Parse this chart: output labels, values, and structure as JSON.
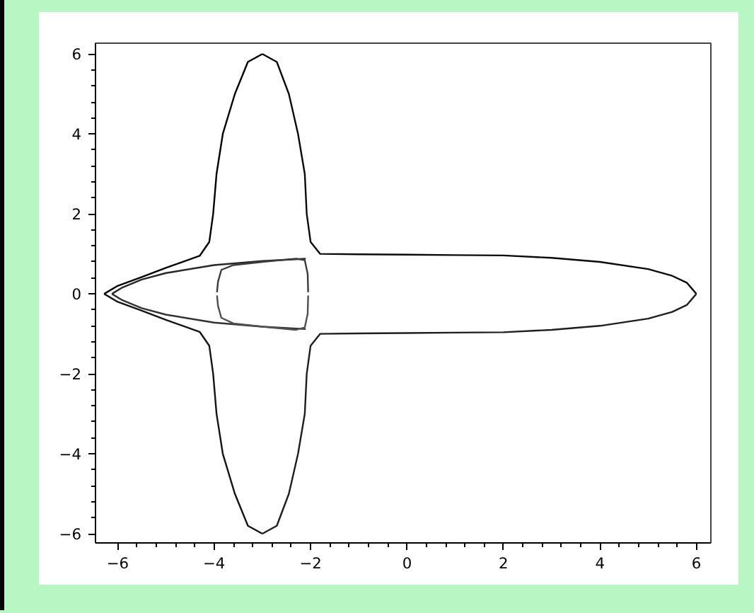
{
  "chart_data": {
    "type": "line",
    "xlim": [
      -6.46,
      6.3
    ],
    "ylim": [
      -6.23,
      6.27
    ],
    "xticks": [
      -6,
      {
        "value": -5.6,
        "label": null
      },
      {
        "value": -5.2,
        "label": null
      },
      {
        "value": -4.8,
        "label": null
      },
      {
        "value": -4.4,
        "label": null
      },
      -4,
      {
        "value": -3.6,
        "label": null
      },
      {
        "value": -3.2,
        "label": null
      },
      {
        "value": -2.8,
        "label": null
      },
      {
        "value": -2.4,
        "label": null
      },
      -2,
      {
        "value": -1.6,
        "label": null
      },
      {
        "value": -1.2,
        "label": null
      },
      {
        "value": -0.8,
        "label": null
      },
      {
        "value": -0.4,
        "label": null
      },
      0,
      {
        "value": 0.4,
        "label": null
      },
      {
        "value": 0.8,
        "label": null
      },
      {
        "value": 1.2,
        "label": null
      },
      {
        "value": 1.6,
        "label": null
      },
      2,
      {
        "value": 2.4,
        "label": null
      },
      {
        "value": 2.8,
        "label": null
      },
      {
        "value": 3.2,
        "label": null
      },
      {
        "value": 3.6,
        "label": null
      },
      4,
      {
        "value": 4.4,
        "label": null
      },
      {
        "value": 4.8,
        "label": null
      },
      {
        "value": 5.2,
        "label": null
      },
      {
        "value": 5.6,
        "label": null
      },
      6
    ],
    "yticks": [
      -6,
      {
        "value": -5.6,
        "label": null
      },
      {
        "value": -5.2,
        "label": null
      },
      {
        "value": -4.8,
        "label": null
      },
      {
        "value": -4.4,
        "label": null
      },
      -4,
      {
        "value": -3.6,
        "label": null
      },
      {
        "value": -3.2,
        "label": null
      },
      {
        "value": -2.8,
        "label": null
      },
      {
        "value": -2.4,
        "label": null
      },
      -2,
      {
        "value": -1.6,
        "label": null
      },
      {
        "value": -1.2,
        "label": null
      },
      {
        "value": -0.8,
        "label": null
      },
      {
        "value": -0.4,
        "label": null
      },
      0,
      {
        "value": 0.4,
        "label": null
      },
      {
        "value": 0.8,
        "label": null
      },
      {
        "value": 1.2,
        "label": null
      },
      {
        "value": 1.6,
        "label": null
      },
      2,
      {
        "value": 2.4,
        "label": null
      },
      {
        "value": 2.8,
        "label": null
      },
      {
        "value": 3.2,
        "label": null
      },
      {
        "value": 3.6,
        "label": null
      },
      4,
      {
        "value": 4.4,
        "label": null
      },
      {
        "value": 4.8,
        "label": null
      },
      {
        "value": 5.2,
        "label": null
      },
      {
        "value": 5.6,
        "label": null
      },
      6
    ],
    "grid": false,
    "marker": "none",
    "line_style": "solid",
    "series": [
      {
        "color": "#000000",
        "x": [
          -6.28,
          -6,
          -5.5,
          -5,
          -4.3,
          -4.1,
          -4.02,
          -3.95,
          -3.82,
          -3.57,
          -3.3,
          -3
        ],
        "values": [
          0,
          0.2,
          0.42,
          0.65,
          0.95,
          1.3,
          2,
          3,
          4,
          5,
          5.8,
          6
        ]
      },
      {
        "color": "#0a0a0a",
        "x": [
          -3,
          -2.7,
          -2.45,
          -2.26,
          -2.12,
          -2.08,
          -2.0,
          -1.8,
          -1,
          0,
          1,
          2,
          3,
          4,
          5,
          5.5,
          5.8,
          6
        ],
        "values": [
          6,
          5.8,
          5,
          4,
          3,
          2,
          1.3,
          1.0,
          0.99,
          0.98,
          0.97,
          0.96,
          0.9,
          0.8,
          0.62,
          0.45,
          0.28,
          0
        ]
      },
      {
        "color": "#141414",
        "x": [
          -6.28,
          -6,
          -5.5,
          -5,
          -4.3,
          -4.1,
          -4.02,
          -3.95,
          -3.82,
          -3.57,
          -3.3,
          -3
        ],
        "values": [
          0,
          -0.2,
          -0.42,
          -0.65,
          -0.95,
          -1.3,
          -2,
          -3,
          -4,
          -5,
          -5.8,
          -6
        ]
      },
      {
        "color": "#1e1e1e",
        "x": [
          -3,
          -2.7,
          -2.45,
          -2.26,
          -2.12,
          -2.08,
          -2.0,
          -1.8,
          -1,
          0,
          1,
          2,
          3,
          4,
          5,
          5.5,
          5.8,
          6
        ],
        "values": [
          -6,
          -5.8,
          -5,
          -4,
          -3,
          -2,
          -1.3,
          -1.0,
          -0.99,
          -0.98,
          -0.97,
          -0.96,
          -0.9,
          -0.8,
          -0.62,
          -0.45,
          -0.28,
          0
        ]
      },
      {
        "color": "#282828",
        "x": [
          -6.12,
          -5.9,
          -5.5,
          -5,
          -4,
          -3,
          -2.1
        ],
        "values": [
          0,
          0.16,
          0.36,
          0.52,
          0.72,
          0.82,
          0.88
        ]
      },
      {
        "color": "#323232",
        "x": [
          -6.12,
          -5.9,
          -5.5,
          -5,
          -4,
          -3,
          -2.1
        ],
        "values": [
          0,
          -0.16,
          -0.36,
          -0.52,
          -0.72,
          -0.82,
          -0.88
        ]
      },
      {
        "color": "#3c3c3c",
        "x": [
          -3.94,
          -3.92,
          -3.85,
          -3.6,
          -3,
          -2.3,
          -2.12,
          -2.06,
          -2.05
        ],
        "values": [
          0.04,
          0.3,
          0.6,
          0.72,
          0.8,
          0.88,
          0.84,
          0.5,
          0.04
        ]
      },
      {
        "color": "#505050",
        "x": [
          -3.94,
          -3.92,
          -3.85,
          -3.6,
          -3,
          -2.3,
          -2.12,
          -2.06,
          -2.05
        ],
        "values": [
          -0.04,
          -0.3,
          -0.6,
          -0.74,
          -0.82,
          -0.9,
          -0.84,
          -0.5,
          -0.04
        ]
      }
    ]
  }
}
